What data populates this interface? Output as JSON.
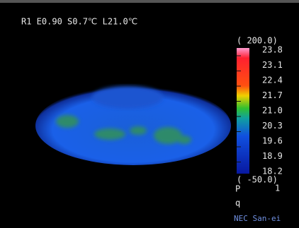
{
  "header": {
    "readout": "R1 E0.90 S0.7℃ L21.0℃"
  },
  "scale": {
    "top_range": "( 200.0)",
    "labels": [
      "23.8",
      "23.1",
      "22.4",
      "21.7",
      "21.0",
      "20.3",
      "19.6",
      "18.9",
      "18.2"
    ],
    "bottom_range": "( -50.0)",
    "marker": "P",
    "marker_value": "1",
    "marker_alt": "q"
  },
  "footer": {
    "brand": "NEC San-ei"
  }
}
